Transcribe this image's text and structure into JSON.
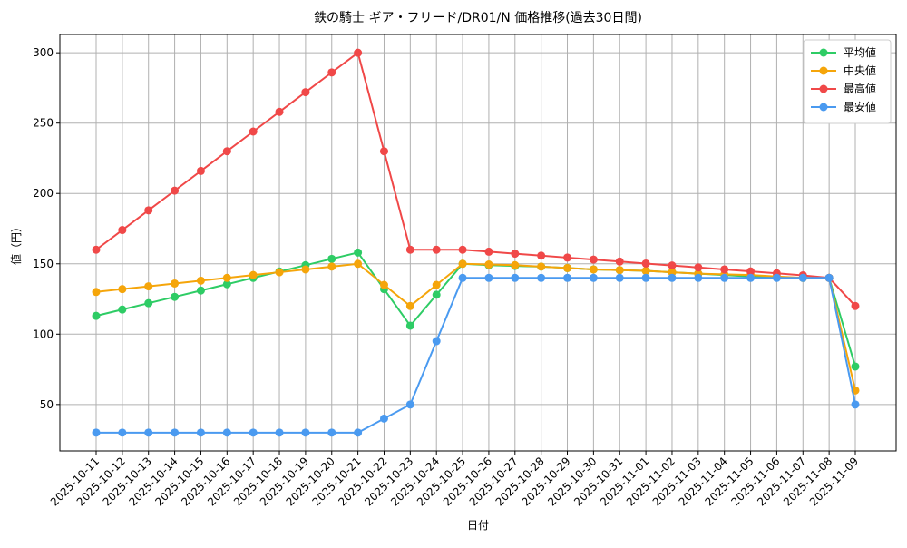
{
  "chart_data": {
    "type": "line",
    "title": "鉄の騎士 ギア・フリード/DR01/N 価格推移(過去30日間)",
    "x_label": "日付",
    "y_label": "値（円）",
    "categories": [
      "2025-10-11",
      "2025-10-12",
      "2025-10-13",
      "2025-10-14",
      "2025-10-15",
      "2025-10-16",
      "2025-10-17",
      "2025-10-18",
      "2025-10-19",
      "2025-10-20",
      "2025-10-21",
      "2025-10-22",
      "2025-10-23",
      "2025-10-24",
      "2025-10-25",
      "2025-10-26",
      "2025-10-27",
      "2025-10-28",
      "2025-10-29",
      "2025-10-30",
      "2025-10-31",
      "2025-11-01",
      "2025-11-02",
      "2025-11-03",
      "2025-11-04",
      "2025-11-05",
      "2025-11-06",
      "2025-11-07",
      "2025-11-08",
      "2025-11-09"
    ],
    "series": [
      {
        "name": "平均値",
        "color": "#2ecc65",
        "values": [
          113,
          117.5,
          122,
          126.5,
          131,
          135.5,
          140,
          144.5,
          149,
          153.5,
          158,
          132,
          106,
          128,
          150,
          149,
          148.5,
          148,
          147,
          146,
          145.5,
          145,
          144,
          143,
          142,
          141,
          140.5,
          140,
          140,
          77
        ]
      },
      {
        "name": "中央値",
        "color": "#f5a50a",
        "values": [
          130,
          132,
          134,
          136,
          138,
          140,
          142,
          144,
          146,
          148,
          150,
          135,
          120,
          135,
          150,
          149.5,
          149,
          148,
          147,
          146,
          145.5,
          145,
          144,
          143,
          142.5,
          142,
          141,
          140,
          140,
          60
        ]
      },
      {
        "name": "最高値",
        "color": "#f04848",
        "values": [
          160,
          174,
          188,
          202,
          216,
          230,
          244,
          258,
          272,
          286,
          300,
          230,
          160,
          160,
          160,
          158.6,
          157.2,
          155.8,
          154.4,
          153,
          151.6,
          150.2,
          148.8,
          147.4,
          146,
          144.6,
          143.2,
          141.8,
          140,
          120
        ]
      },
      {
        "name": "最安値",
        "color": "#4a9af0",
        "values": [
          30,
          30,
          30,
          30,
          30,
          30,
          30,
          30,
          30,
          30,
          30,
          40,
          50,
          95,
          140,
          140,
          140,
          140,
          140,
          140,
          140,
          140,
          140,
          140,
          140,
          140,
          140,
          140,
          140,
          50
        ]
      }
    ],
    "ylim": [
      17,
      313
    ],
    "yticks": [
      50,
      100,
      150,
      200,
      250,
      300
    ],
    "grid": true,
    "legend": "upper right"
  }
}
